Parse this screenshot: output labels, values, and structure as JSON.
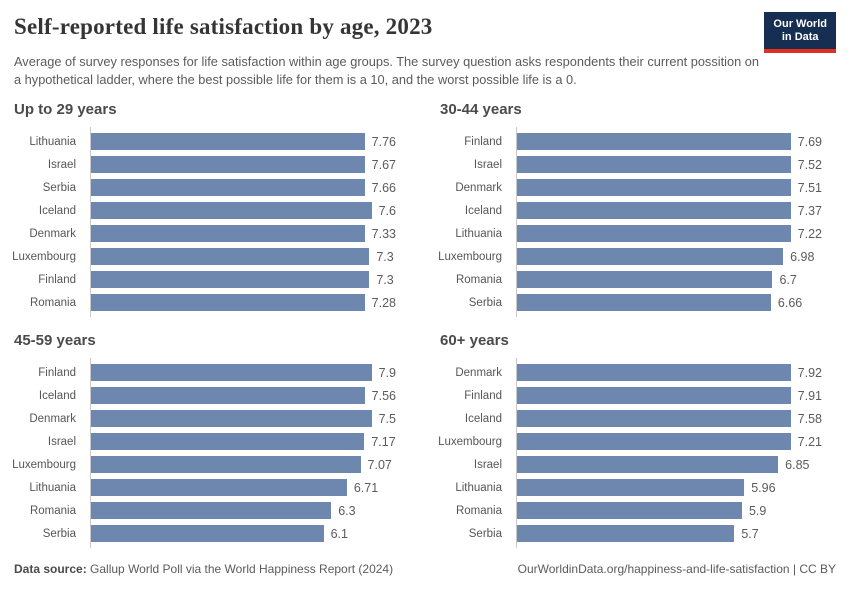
{
  "header": {
    "title": "Self-reported life satisfaction by age, 2023",
    "subtitle": "Average of survey responses for life satisfaction within age groups. The survey question asks respondents their current possition on a hypothetical ladder, where the best possible life for them is a 10, and the worst possible life is a 0.",
    "logo": {
      "line1": "Our World",
      "line2": "in Data"
    }
  },
  "chart_data": [
    {
      "type": "bar",
      "title": "Up to 29 years",
      "categories": [
        "Lithuania",
        "Israel",
        "Serbia",
        "Iceland",
        "Denmark",
        "Luxembourg",
        "Finland",
        "Romania"
      ],
      "values": [
        7.76,
        7.67,
        7.66,
        7.6,
        7.33,
        7.3,
        7.3,
        7.28
      ],
      "xlabel": "",
      "ylabel": "",
      "xlim": [
        0,
        8
      ],
      "orientation": "horizontal",
      "grid": false,
      "data_labels": true
    },
    {
      "type": "bar",
      "title": "30-44 years",
      "categories": [
        "Finland",
        "Israel",
        "Denmark",
        "Iceland",
        "Lithuania",
        "Luxembourg",
        "Romania",
        "Serbia"
      ],
      "values": [
        7.69,
        7.52,
        7.51,
        7.37,
        7.22,
        6.98,
        6.7,
        6.66
      ],
      "xlabel": "",
      "ylabel": "",
      "xlim": [
        0,
        8
      ],
      "orientation": "horizontal",
      "grid": false,
      "data_labels": true
    },
    {
      "type": "bar",
      "title": "45-59 years",
      "categories": [
        "Finland",
        "Iceland",
        "Denmark",
        "Israel",
        "Luxembourg",
        "Lithuania",
        "Romania",
        "Serbia"
      ],
      "values": [
        7.9,
        7.56,
        7.5,
        7.17,
        7.07,
        6.71,
        6.3,
        6.1
      ],
      "xlabel": "",
      "ylabel": "",
      "xlim": [
        0,
        8
      ],
      "orientation": "horizontal",
      "grid": false,
      "data_labels": true
    },
    {
      "type": "bar",
      "title": "60+ years",
      "categories": [
        "Denmark",
        "Finland",
        "Iceland",
        "Luxembourg",
        "Israel",
        "Lithuania",
        "Romania",
        "Serbia"
      ],
      "values": [
        7.92,
        7.91,
        7.58,
        7.21,
        6.85,
        5.96,
        5.9,
        5.7
      ],
      "xlabel": "",
      "ylabel": "",
      "xlim": [
        0,
        8
      ],
      "orientation": "horizontal",
      "grid": false,
      "data_labels": true
    }
  ],
  "footer": {
    "source_label": "Data source:",
    "source_text": "Gallup World Poll via the World Happiness Report (2024)",
    "link_text": "OurWorldinData.org/happiness-and-life-satisfaction | CC BY"
  },
  "colors": {
    "bar": "#6e87af",
    "logo_navy": "#152e52",
    "logo_red": "#e0301e",
    "axis_line": "#c9c9c9",
    "title_text": "#353535",
    "subtitle_text": "#5b5b5b"
  }
}
